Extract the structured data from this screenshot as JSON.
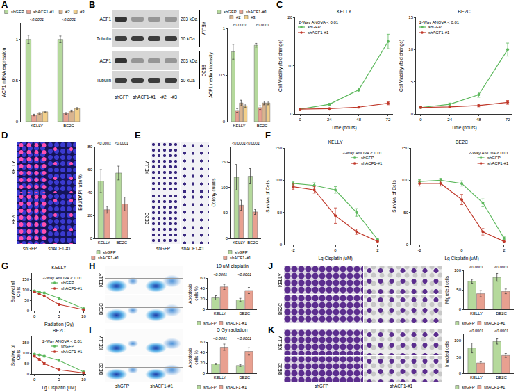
{
  "chart_data": [
    {
      "type": "bar",
      "panel": "A",
      "ylabel": "ACF1 mRNA expression",
      "categories": [
        "KELLY",
        "BE2C"
      ],
      "series": [
        {
          "name": "shGFP",
          "color": "#b5d99c",
          "values": [
            1.0,
            1.0
          ],
          "errors": [
            0.05,
            0.04
          ]
        },
        {
          "name": "shACF1-#1",
          "color": "#e8a090",
          "values": [
            0.08,
            0.1
          ],
          "errors": [
            0.01,
            0.01
          ]
        },
        {
          "name": "#2",
          "color": "#d9b48f",
          "values": [
            0.1,
            0.13
          ],
          "errors": [
            0.01,
            0.01
          ]
        },
        {
          "name": "#3",
          "color": "#f2cf8a",
          "values": [
            0.12,
            0.16
          ],
          "errors": [
            0.01,
            0.01
          ]
        }
      ],
      "ylim": [
        0,
        1.2
      ],
      "yticks": [
        0,
        0.5,
        1
      ],
      "annotations": [
        {
          "category": "KELLY",
          "text": "<0.0001"
        },
        {
          "category": "BE2C",
          "text": "<0.0001"
        }
      ],
      "legend": "top",
      "grid": false
    },
    {
      "type": "bar",
      "ylabel": "ACF1 median intensity",
      "categories": [
        "KELLY",
        "BE2C"
      ],
      "series": [
        {
          "name": "shGFP",
          "color": "#b5d99c",
          "values": [
            0.75,
            0.82
          ],
          "errors": [
            0.08,
            0.02
          ]
        },
        {
          "name": "shACF1-#1",
          "color": "#e8a090",
          "values": [
            0.12,
            0.15
          ],
          "errors": [
            0.02,
            0.02
          ]
        },
        {
          "name": "#2",
          "color": "#d9b48f",
          "values": [
            0.2,
            0.2
          ],
          "errors": [
            0.03,
            0.02
          ]
        },
        {
          "name": "#3",
          "color": "#f2cf8a",
          "values": [
            0.17,
            0.2
          ],
          "errors": [
            0.02,
            0.02
          ]
        }
      ],
      "ylim": [
        0,
        1
      ],
      "yticks": [
        0,
        0.5,
        1
      ],
      "annotations": [
        {
          "category": "KELLY",
          "text": "<0.0001"
        },
        {
          "category": "BE2C",
          "text": "<0.0001"
        }
      ],
      "legend": "top",
      "grid": false
    },
    {
      "type": "line",
      "panel": "C",
      "title": "KELLY",
      "xlabel": "Time (hours)",
      "ylabel": "Cell Viability (fold change)",
      "x": [
        0,
        24,
        48,
        72
      ],
      "series": [
        {
          "name": "shGFP",
          "color": "#5cb85c",
          "marker": "circle",
          "values": [
            1,
            2,
            5,
            15
          ],
          "errors": [
            0.1,
            0.2,
            0.4,
            1.5
          ]
        },
        {
          "name": "shACF1-#1",
          "color": "#c0392b",
          "marker": "circle",
          "values": [
            1,
            1.1,
            1.4,
            2.2
          ],
          "errors": [
            0.1,
            0.1,
            0.2,
            0.3
          ]
        }
      ],
      "xlim": [
        -4,
        76
      ],
      "xticks": [
        0,
        24,
        48,
        72
      ],
      "ylim": [
        0,
        20
      ],
      "yticks": [
        0,
        10,
        20
      ],
      "annotation": "2-Way ANOVA < 0.01",
      "legend": "top left",
      "grid": false
    },
    {
      "type": "line",
      "title": "BE2C",
      "xlabel": "Time (hours)",
      "ylabel": "Cell Viability (fold change)",
      "x": [
        0,
        24,
        48,
        72
      ],
      "series": [
        {
          "name": "shGFP",
          "color": "#5cb85c",
          "marker": "circle",
          "values": [
            1,
            1.5,
            3,
            10
          ],
          "errors": [
            0.1,
            0.2,
            0.4,
            1.0
          ]
        },
        {
          "name": "shACF1-#1",
          "color": "#c0392b",
          "marker": "circle",
          "values": [
            1,
            1.1,
            1.3,
            1.8
          ],
          "errors": [
            0.1,
            0.1,
            0.2,
            0.3
          ]
        }
      ],
      "xlim": [
        -4,
        76
      ],
      "xticks": [
        0,
        24,
        48,
        72
      ],
      "ylim": [
        0,
        15
      ],
      "yticks": [
        0,
        5,
        10,
        15
      ],
      "annotation": "2-Way ANOVA < 0.01",
      "legend": "top left",
      "grid": false
    },
    {
      "type": "bar",
      "ylabel": "EdU/DAPI ratio %",
      "categories": [
        "KELLY",
        "BE2C"
      ],
      "series": [
        {
          "name": "shGFP",
          "color": "#b5d99c",
          "values": [
            50,
            57
          ],
          "errors": [
            10,
            6
          ]
        },
        {
          "name": "shACF1-#1",
          "color": "#e8a090",
          "values": [
            25,
            30
          ],
          "errors": [
            3,
            6
          ]
        }
      ],
      "ylim": [
        0,
        80
      ],
      "yticks": [
        0,
        20,
        40,
        60,
        80
      ],
      "annotations": [
        {
          "category": "KELLY",
          "text": "<0.0001"
        },
        {
          "category": "BE2C",
          "text": "<0.0001"
        }
      ],
      "legend": "bottom",
      "grid": false
    },
    {
      "type": "bar",
      "ylabel": "Colony counts",
      "categories": [
        "KELLY",
        "BE2C"
      ],
      "series": [
        {
          "name": "shGFP",
          "color": "#b5d99c",
          "values": [
            120,
            122
          ],
          "errors": [
            25,
            15
          ]
        },
        {
          "name": "shACF1-#1",
          "color": "#e8a090",
          "values": [
            65,
            52
          ],
          "errors": [
            10,
            5
          ]
        }
      ],
      "ylim": [
        0,
        180
      ],
      "yticks": [
        0,
        50,
        100,
        150
      ],
      "annotations": [
        {
          "category": "KELLY",
          "text": "<0.0001"
        },
        {
          "category": "BE2C",
          "text": "<0.0001"
        }
      ],
      "legend": "bottom",
      "grid": false
    },
    {
      "type": "line",
      "panel": "F",
      "title": "KELLY",
      "xlabel": "Lg Cisplatin (uM)",
      "ylabel": "Survival of Cells",
      "x": [
        -2,
        -1,
        0,
        1,
        2
      ],
      "series": [
        {
          "name": "shGFP",
          "color": "#5cb85c",
          "marker": "circle",
          "values": [
            95,
            92,
            85,
            50,
            8
          ],
          "errors": [
            3,
            4,
            5,
            6,
            2
          ]
        },
        {
          "name": "shACF1-#1",
          "color": "#c0392b",
          "marker": "circle",
          "values": [
            90,
            85,
            45,
            20,
            5
          ],
          "errors": [
            4,
            5,
            12,
            4,
            2
          ]
        }
      ],
      "xlim": [
        -2.4,
        2.4
      ],
      "xticks": [
        -2,
        0,
        2
      ],
      "ylim": [
        0,
        150
      ],
      "yticks": [
        0,
        50,
        100,
        150
      ],
      "annotation": "2-Way ANOVA < 0.01",
      "legend": "top right",
      "grid": false
    },
    {
      "type": "line",
      "title": "BE2C",
      "xlabel": "Lg Cisplatin (uM)",
      "ylabel": "Survival of Cells",
      "x": [
        -2,
        -1,
        0,
        1,
        2
      ],
      "series": [
        {
          "name": "shGFP",
          "color": "#5cb85c",
          "marker": "circle",
          "values": [
            98,
            100,
            95,
            65,
            10
          ],
          "errors": [
            3,
            3,
            4,
            6,
            2
          ]
        },
        {
          "name": "shACF1-#1",
          "color": "#c0392b",
          "marker": "circle",
          "values": [
            95,
            95,
            70,
            20,
            5
          ],
          "errors": [
            4,
            4,
            8,
            5,
            2
          ]
        }
      ],
      "xlim": [
        -2.4,
        2.4
      ],
      "xticks": [
        -2,
        0,
        2
      ],
      "ylim": [
        0,
        150
      ],
      "yticks": [
        0,
        50,
        100,
        150
      ],
      "annotation": "2-Way ANOVA < 0.01",
      "legend": "top right",
      "grid": false
    },
    {
      "type": "line",
      "panel": "G",
      "title": "KELLY",
      "xlabel": "Radiation (Gy)",
      "ylabel": "Survival of Cells",
      "x": [
        0,
        1,
        2,
        5,
        10
      ],
      "series": [
        {
          "name": "shGFP",
          "color": "#5cb85c",
          "marker": "circle",
          "values": [
            95,
            90,
            85,
            60,
            10
          ],
          "errors": [
            3,
            3,
            4,
            5,
            2
          ]
        },
        {
          "name": "shACF1-#1",
          "color": "#c0392b",
          "marker": "circle",
          "values": [
            90,
            80,
            70,
            30,
            5
          ],
          "errors": [
            3,
            4,
            5,
            4,
            2
          ]
        }
      ],
      "xlim": [
        -0.5,
        10.5
      ],
      "xticks": [
        0,
        5,
        10
      ],
      "ylim": [
        0,
        180
      ],
      "yticks": [
        0,
        50,
        100,
        150
      ],
      "annotation": "2-Way ANOVA < 0.01",
      "legend": "top right",
      "grid": false
    },
    {
      "type": "line",
      "title": "BE2C",
      "xlabel": "Lg Cisplatin (uM)",
      "ylabel": "Survival of Cells",
      "x": [
        0,
        1,
        2,
        5,
        10
      ],
      "series": [
        {
          "name": "shGFP",
          "color": "#5cb85c",
          "marker": "circle",
          "values": [
            95,
            92,
            85,
            65,
            10
          ],
          "errors": [
            3,
            3,
            4,
            5,
            2
          ]
        },
        {
          "name": "shACF1-#1",
          "color": "#c0392b",
          "marker": "circle",
          "values": [
            85,
            70,
            50,
            20,
            5
          ],
          "errors": [
            3,
            4,
            5,
            3,
            2
          ]
        }
      ],
      "xlim": [
        -0.5,
        10.5
      ],
      "xticks": [
        0,
        5,
        10
      ],
      "ylim": [
        0,
        180
      ],
      "yticks": [
        0,
        50,
        100,
        150
      ],
      "annotation": "2-Way ANOVA < 0.01",
      "legend": "top right",
      "grid": false
    },
    {
      "type": "bar",
      "title": "10 uM cisplatin",
      "ylabel": "Apoptosis cells %",
      "categories": [
        "KELLY",
        "BE2C"
      ],
      "series": [
        {
          "name": "shGFP",
          "color": "#b5d99c",
          "values": [
            22,
            18
          ],
          "errors": [
            4,
            3
          ]
        },
        {
          "name": "shACF1-#1",
          "color": "#e8a090",
          "values": [
            43,
            36
          ],
          "errors": [
            5,
            6
          ]
        }
      ],
      "ylim": [
        0,
        60
      ],
      "yticks": [
        0,
        20,
        40,
        60
      ],
      "annotations": [
        {
          "category": "KELLY",
          "text": "<0.0001"
        },
        {
          "category": "BE2C",
          "text": "<0.0001"
        }
      ],
      "legend": "bottom",
      "grid": false
    },
    {
      "type": "bar",
      "title": "5 Gy radiation",
      "ylabel": "Apoptosis cells %",
      "categories": [
        "KELLY",
        "BE2C"
      ],
      "series": [
        {
          "name": "shGFP",
          "color": "#b5d99c",
          "values": [
            18,
            15
          ],
          "errors": [
            1,
            2
          ]
        },
        {
          "name": "shACF1-#1",
          "color": "#e8a090",
          "values": [
            50,
            42
          ],
          "errors": [
            6,
            7
          ]
        }
      ],
      "ylim": [
        0,
        60
      ],
      "yticks": [
        0,
        20,
        40,
        60
      ],
      "annotations": [
        {
          "category": "KELLY",
          "text": "<0.0001"
        },
        {
          "category": "BE2C",
          "text": "<0.0001"
        }
      ],
      "legend": "bottom",
      "grid": false
    },
    {
      "type": "bar",
      "ylabel": "Migrated cells",
      "categories": [
        "KELLY",
        "BE2C"
      ],
      "series": [
        {
          "name": "shGFP",
          "color": "#b5d99c",
          "values": [
            72,
            82
          ],
          "errors": [
            5,
            10
          ]
        },
        {
          "name": "shACF1-#1",
          "color": "#e8a090",
          "values": [
            40,
            46
          ],
          "errors": [
            8,
            6
          ]
        }
      ],
      "ylim": [
        0,
        100
      ],
      "yticks": [
        0,
        50,
        100
      ],
      "annotations": [
        {
          "category": "KELLY",
          "text": "<0.0001"
        },
        {
          "category": "BE2C",
          "text": "<0.0001"
        }
      ],
      "legend": "bottom",
      "grid": false
    },
    {
      "type": "bar",
      "ylabel": "Invaded cells",
      "categories": [
        "KELLY",
        "BE2C"
      ],
      "series": [
        {
          "name": "shGFP",
          "color": "#b5d99c",
          "values": [
            78,
            98
          ],
          "errors": [
            15,
            8
          ]
        },
        {
          "name": "shACF1-#1",
          "color": "#e8a090",
          "values": [
            32,
            55
          ],
          "errors": [
            3,
            6
          ]
        }
      ],
      "ylim": [
        0,
        120
      ],
      "yticks": [
        0,
        50,
        100
      ],
      "annotations": [
        {
          "category": "KELLY",
          "text": "<0.0001"
        },
        {
          "category": "BE2C",
          "text": "<0.0001"
        }
      ],
      "legend": "bottom",
      "grid": false
    }
  ],
  "image_panels": [
    {
      "panel": "B",
      "groups": [
        {
          "name": "KELLY",
          "bands": [
            {
              "name": "ACF1",
              "size": "203 kDa"
            },
            {
              "name": "Tubulin",
              "size": "50 kDa"
            }
          ]
        },
        {
          "name": "BE2C",
          "bands": [
            {
              "name": "ACF1",
              "size": "203 kDa"
            },
            {
              "name": "Tubulin",
              "size": "50 kDa"
            }
          ]
        }
      ],
      "columns": [
        "shGFP",
        "shACF1-#1",
        "-#2",
        "-#3"
      ]
    },
    {
      "panel": "D",
      "rows": [
        "KELLY",
        "BE2C"
      ],
      "columns": [
        "shGFP",
        "shACF1-#1"
      ]
    },
    {
      "panel": "E",
      "rows": [
        "KELLY",
        "BE2C"
      ],
      "columns": [
        "shGFP",
        "shACF1-#1"
      ]
    },
    {
      "panel": "H",
      "rows": [
        "KELLY",
        "BE2C"
      ]
    },
    {
      "panel": "I",
      "rows": [
        "KELLY",
        "BE2C"
      ],
      "columns": [
        "shGFP",
        "shACF1-#1"
      ]
    },
    {
      "panel": "J",
      "rows": [
        "KELLY",
        "BE2C"
      ]
    },
    {
      "panel": "K",
      "rows": [
        "KELLY",
        "BE2C"
      ],
      "columns": [
        "shGFP",
        "shACF1-#1"
      ]
    }
  ]
}
